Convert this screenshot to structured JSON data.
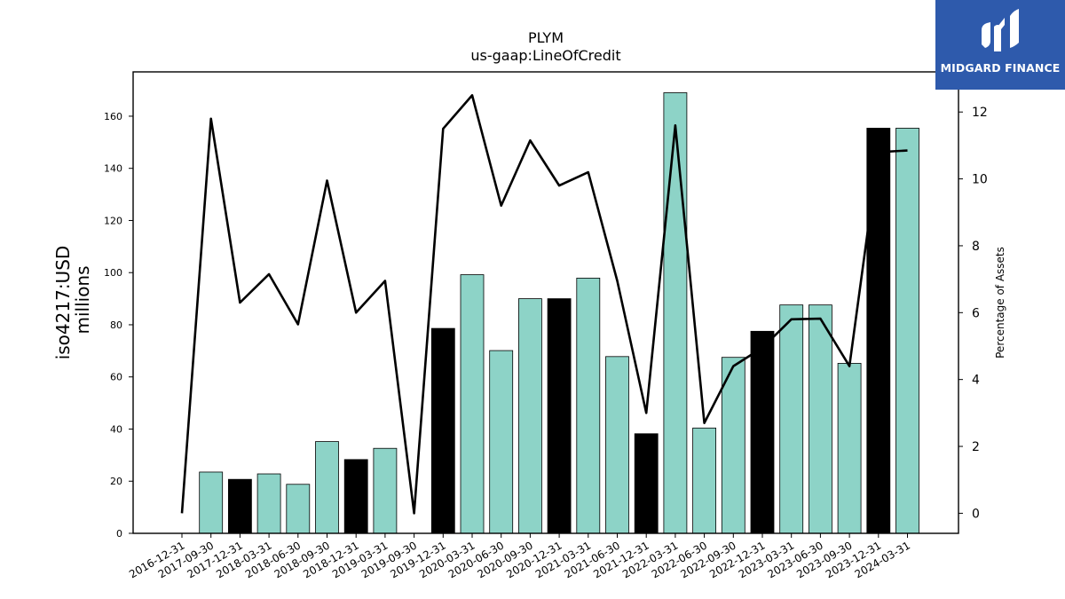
{
  "chart_data": {
    "type": "bar",
    "title": "PLYM",
    "subtitle": "us-gaap:LineOfCredit",
    "ylabel": "iso4217:USD",
    "ylabel_unit": "millions",
    "y2label": "Percentage of Assets",
    "ylim": [
      0,
      177
    ],
    "y2lim": [
      -0.6,
      13.2
    ],
    "yticks": [
      0,
      20,
      40,
      60,
      80,
      100,
      120,
      140,
      160
    ],
    "y2ticks": [
      0,
      2,
      4,
      6,
      8,
      10,
      12
    ],
    "categories": [
      "2016-12-31",
      "2017-09-30",
      "2017-12-31",
      "2018-03-31",
      "2018-06-30",
      "2018-09-30",
      "2018-12-31",
      "2019-03-31",
      "2019-09-30",
      "2019-12-31",
      "2020-03-31",
      "2020-06-30",
      "2020-09-30",
      "2020-12-31",
      "2021-03-31",
      "2021-06-30",
      "2021-12-31",
      "2022-03-31",
      "2022-06-30",
      "2022-09-30",
      "2022-12-31",
      "2023-03-31",
      "2023-06-30",
      "2023-09-30",
      "2023-12-31",
      "2024-03-31"
    ],
    "series": [
      {
        "type": "bar",
        "values": [
          null,
          23.5,
          20.7,
          22.8,
          18.8,
          35.2,
          28.3,
          32.6,
          null,
          78.6,
          99.2,
          70.1,
          90.0,
          90.0,
          97.9,
          67.8,
          38.2,
          169.0,
          40.4,
          67.5,
          77.5,
          87.6,
          87.6,
          65.2,
          155.4,
          155.4
        ],
        "colors": [
          "#8dd3c7",
          "#8dd3c7",
          "#000000",
          "#8dd3c7",
          "#8dd3c7",
          "#8dd3c7",
          "#000000",
          "#8dd3c7",
          "#8dd3c7",
          "#000000",
          "#8dd3c7",
          "#8dd3c7",
          "#8dd3c7",
          "#000000",
          "#8dd3c7",
          "#8dd3c7",
          "#000000",
          "#8dd3c7",
          "#8dd3c7",
          "#8dd3c7",
          "#000000",
          "#8dd3c7",
          "#8dd3c7",
          "#8dd3c7",
          "#000000",
          "#8dd3c7"
        ]
      },
      {
        "type": "line",
        "axis": "right",
        "values": [
          0.0,
          11.8,
          6.3,
          7.15,
          5.65,
          9.95,
          6.0,
          6.95,
          0.0,
          11.5,
          12.5,
          9.2,
          11.15,
          9.8,
          10.2,
          6.95,
          3.0,
          11.6,
          2.7,
          4.4,
          4.95,
          5.8,
          5.82,
          4.4,
          10.8,
          10.85
        ],
        "color": "#000000"
      }
    ]
  },
  "logo": {
    "text": "MIDGARD FINANCE",
    "background": "#2e5aac"
  }
}
